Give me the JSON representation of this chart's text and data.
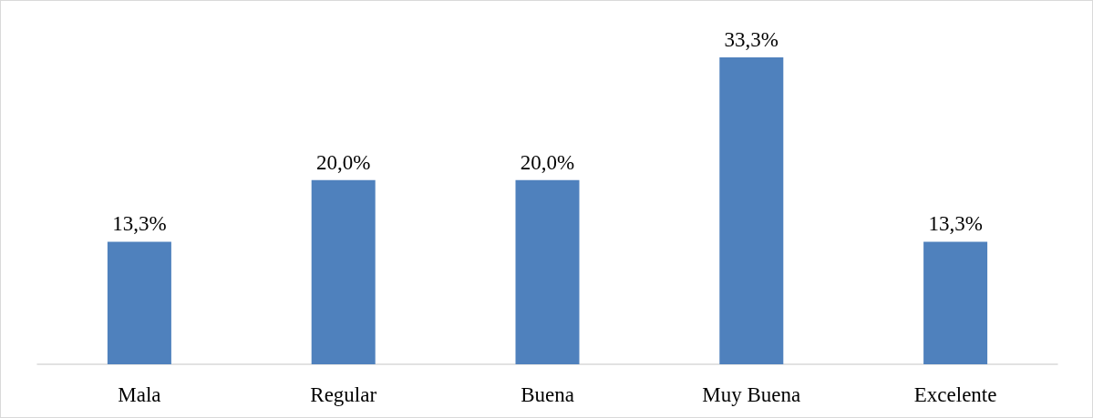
{
  "chart_data": {
    "type": "bar",
    "categories": [
      "Mala",
      "Regular",
      "Buena",
      "Muy Buena",
      "Excelente"
    ],
    "values": [
      13.3,
      20.0,
      20.0,
      33.3,
      13.3
    ],
    "value_labels": [
      "13,3%",
      "20,0%",
      "20,0%",
      "33,3%",
      "13,3%"
    ],
    "color": "#4f81bd",
    "grid": false
  }
}
